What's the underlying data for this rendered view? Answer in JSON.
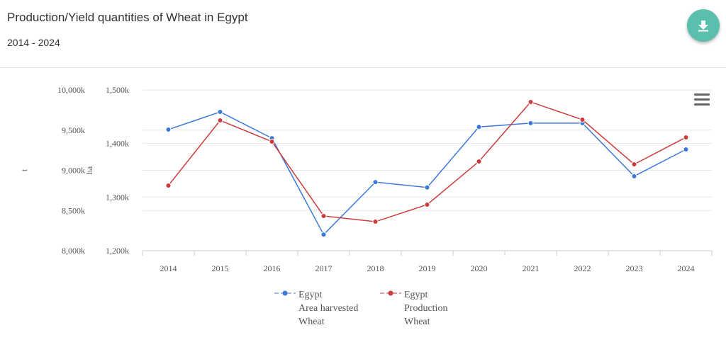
{
  "header": {
    "title": "Production/Yield quantities of Wheat in Egypt",
    "subtitle": "2014 - 2024",
    "download_icon": "download-icon",
    "menu_icon": "hamburger-menu-icon"
  },
  "chart_data": {
    "type": "line",
    "title": "Production/Yield quantities of Wheat in Egypt",
    "subtitle": "2014 - 2024",
    "categories": [
      "2014",
      "2015",
      "2016",
      "2017",
      "2018",
      "2019",
      "2020",
      "2021",
      "2022",
      "2023",
      "2024"
    ],
    "y_axes": [
      {
        "label": "t",
        "ylim": [
          8000,
          10000
        ],
        "ticks": [
          "10,000k",
          "9,500k",
          "9,000k",
          "8,500k",
          "8,000k"
        ],
        "tick_values": [
          10000,
          9500,
          9000,
          8500,
          8000
        ]
      },
      {
        "label": "ha",
        "ylim": [
          1200,
          1500
        ],
        "ticks": [
          "1,500k",
          "1,400k",
          "1,300k",
          "1,200k"
        ],
        "tick_values": [
          1500,
          1400,
          1300,
          1200
        ]
      }
    ],
    "series": [
      {
        "name": "Egypt Area harvested Wheat",
        "legend": [
          "Egypt",
          "Area harvested",
          "Wheat"
        ],
        "axis": 1,
        "color": "#3c78d8",
        "unit": "k ha",
        "values": [
          1426,
          1459,
          1410,
          1230,
          1328,
          1318,
          1431,
          1438,
          1438,
          1339,
          1389
        ]
      },
      {
        "name": "Egypt Production Wheat",
        "legend": [
          "Egypt",
          "Production",
          "Wheat"
        ],
        "axis": 0,
        "color": "#cc3b3b",
        "unit": "k t",
        "values": [
          8811,
          9621,
          9357,
          8432,
          8361,
          8573,
          9110,
          9850,
          9630,
          9075,
          9410
        ]
      }
    ],
    "grid": true,
    "legend_position": "bottom"
  }
}
